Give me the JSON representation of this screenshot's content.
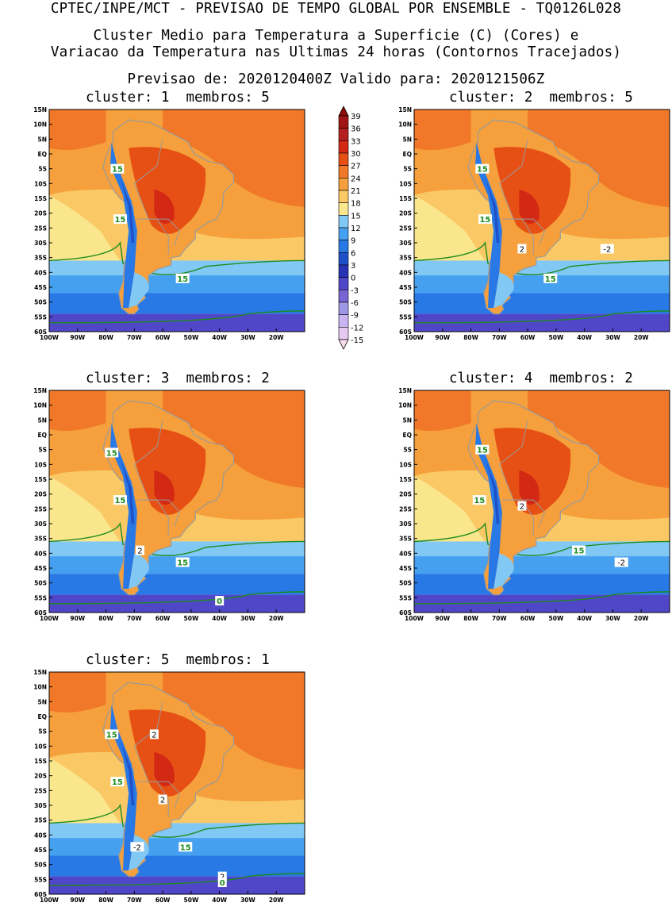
{
  "header": {
    "line1": "CPTEC/INPE/MCT - PREVISAO DE TEMPO GLOBAL POR ENSEMBLE - TQ0126L028",
    "line2": "Cluster Medio para Temperatura a Superficie (C) (Cores) e",
    "line3": "Variacao da Temperatura nas Ultimas 24 horas (Contornos Tracejados)",
    "line4": "Previsao de: 2020120400Z   Valido para: 2020121506Z"
  },
  "axes": {
    "lat_ticks": [
      "15N",
      "10N",
      "5N",
      "EQ",
      "5S",
      "10S",
      "15S",
      "20S",
      "25S",
      "30S",
      "35S",
      "40S",
      "45S",
      "50S",
      "55S",
      "60S"
    ],
    "lon_ticks": [
      "100W",
      "90W",
      "80W",
      "70W",
      "60W",
      "50W",
      "40W",
      "30W",
      "20W"
    ]
  },
  "colorbar": {
    "labels": [
      "39",
      "36",
      "33",
      "30",
      "27",
      "24",
      "21",
      "18",
      "15",
      "12",
      "9",
      "6",
      "3",
      "0",
      "-3",
      "-6",
      "-9",
      "-12",
      "-15"
    ],
    "colors": [
      "#fadcf0",
      "#e6c8f0",
      "#c8b4f0",
      "#a096e6",
      "#7864d2",
      "#5046c8",
      "#2832b4",
      "#1e50c8",
      "#2878e6",
      "#46a0f0",
      "#82c8f5",
      "#fae68c",
      "#fac864",
      "#f5a03c",
      "#f07828",
      "#e65014",
      "#d22814",
      "#b41e1e",
      "#a01414",
      "#8c0a0a"
    ]
  },
  "panels": [
    {
      "cluster_label": "cluster:",
      "cluster": "1",
      "members_label": "membros:",
      "members": "5",
      "contour_labels": [
        {
          "text": "15",
          "lon": -76,
          "lat": -5
        },
        {
          "text": "15",
          "lon": -75,
          "lat": -22
        },
        {
          "text": "15",
          "lon": -53,
          "lat": -42
        }
      ]
    },
    {
      "cluster_label": "cluster:",
      "cluster": "2",
      "members_label": "membros:",
      "members": "5",
      "contour_labels": [
        {
          "text": "15",
          "lon": -76,
          "lat": -5
        },
        {
          "text": "15",
          "lon": -75,
          "lat": -22
        },
        {
          "text": "15",
          "lon": -52,
          "lat": -42
        },
        {
          "text": "2",
          "lon": -62,
          "lat": -32
        },
        {
          "text": "-2",
          "lon": -32,
          "lat": -32
        }
      ]
    },
    {
      "cluster_label": "cluster:",
      "cluster": "3",
      "members_label": "membros:",
      "members": "2",
      "contour_labels": [
        {
          "text": "15",
          "lon": -78,
          "lat": -6
        },
        {
          "text": "15",
          "lon": -75,
          "lat": -22
        },
        {
          "text": "15",
          "lon": -53,
          "lat": -43
        },
        {
          "text": "2",
          "lon": -68,
          "lat": -39
        },
        {
          "text": "0",
          "lon": -40,
          "lat": -56
        }
      ]
    },
    {
      "cluster_label": "cluster:",
      "cluster": "4",
      "members_label": "membros:",
      "members": "2",
      "contour_labels": [
        {
          "text": "15",
          "lon": -76,
          "lat": -5
        },
        {
          "text": "15",
          "lon": -77,
          "lat": -22
        },
        {
          "text": "15",
          "lon": -42,
          "lat": -39
        },
        {
          "text": "2",
          "lon": -62,
          "lat": -24
        },
        {
          "text": "-2",
          "lon": -27,
          "lat": -43
        }
      ]
    },
    {
      "cluster_label": "cluster:",
      "cluster": "5",
      "members_label": "membros:",
      "members": "1",
      "contour_labels": [
        {
          "text": "15",
          "lon": -78,
          "lat": -6
        },
        {
          "text": "15",
          "lon": -76,
          "lat": -22
        },
        {
          "text": "15",
          "lon": -52,
          "lat": -44
        },
        {
          "text": "2",
          "lon": -63,
          "lat": -6
        },
        {
          "text": "2",
          "lon": -60,
          "lat": -28
        },
        {
          "text": "-2",
          "lon": -69,
          "lat": -44
        },
        {
          "text": "2",
          "lon": -39,
          "lat": -54
        },
        {
          "text": "0",
          "lon": -39,
          "lat": -56
        }
      ]
    }
  ]
}
